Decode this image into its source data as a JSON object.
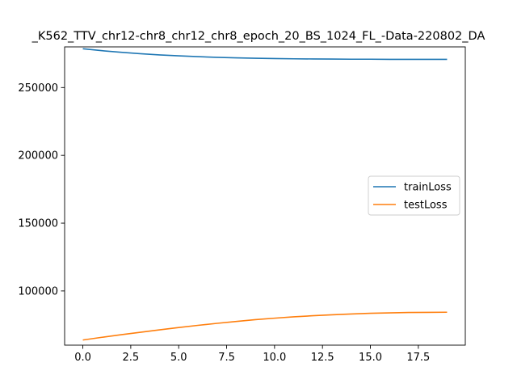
{
  "chart_data": {
    "type": "line",
    "title": "_K562_TTV_chr12-chr8_chr12_chr8_epoch_20_BS_1024_FL_-Data-220802_DA",
    "xlabel": "",
    "ylabel": "",
    "xlim": [
      -0.95,
      19.95
    ],
    "ylim": [
      60000,
      280000
    ],
    "xticks": [
      0,
      2.5,
      5,
      7.5,
      10,
      12.5,
      15,
      17.5
    ],
    "xtick_labels": [
      "0.0",
      "2.5",
      "5.0",
      "7.5",
      "10.0",
      "12.5",
      "15.0",
      "17.5"
    ],
    "yticks": [
      100000,
      150000,
      200000,
      250000
    ],
    "ytick_labels": [
      "100000",
      "150000",
      "200000",
      "250000"
    ],
    "grid": false,
    "legend_position": "center-right",
    "x": [
      0,
      1,
      2,
      3,
      4,
      5,
      6,
      7,
      8,
      9,
      10,
      11,
      12,
      13,
      14,
      15,
      16,
      17,
      18,
      19
    ],
    "series": [
      {
        "name": "trainLoss",
        "color": "#1f77b4",
        "values": [
          278600,
          277200,
          276000,
          275000,
          274100,
          273400,
          272800,
          272300,
          271900,
          271600,
          271400,
          271200,
          271100,
          271000,
          270900,
          270900,
          270800,
          270800,
          270800,
          270800
        ]
      },
      {
        "name": "testLoss",
        "color": "#ff7f0e",
        "values": [
          63800,
          65800,
          67700,
          69500,
          71300,
          73000,
          74600,
          76100,
          77500,
          78800,
          79900,
          80900,
          81700,
          82400,
          83000,
          83500,
          83800,
          84100,
          84200,
          84300
        ]
      }
    ]
  }
}
